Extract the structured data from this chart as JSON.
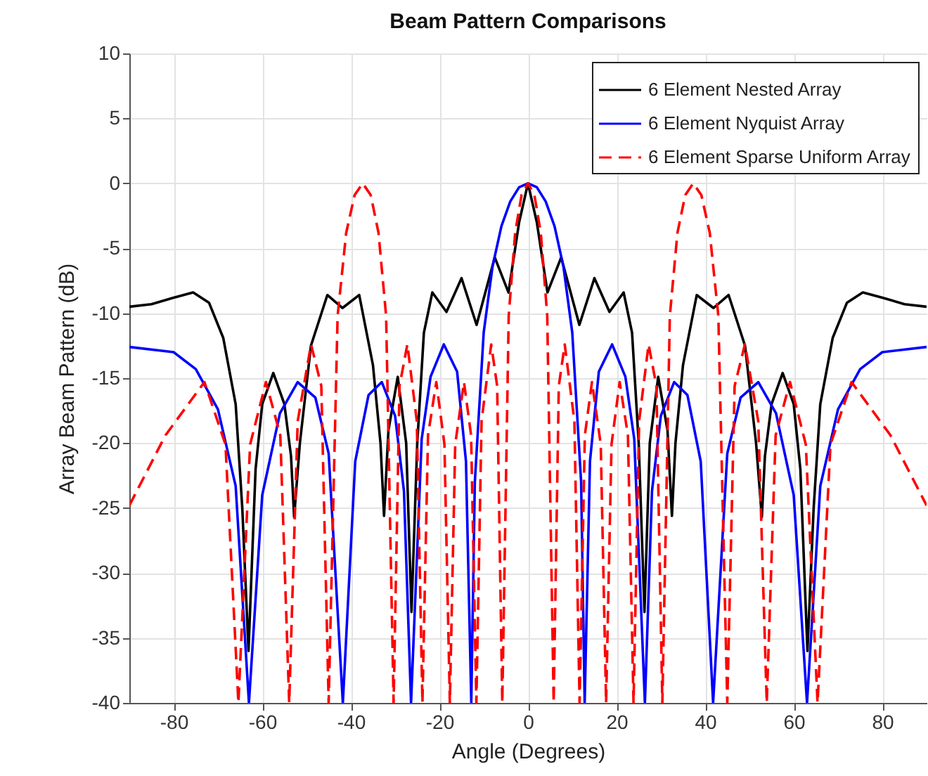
{
  "chart_data": {
    "type": "line",
    "title": "Beam Pattern Comparisons",
    "xlabel": "Angle (Degrees)",
    "ylabel": "Array Beam Pattern (dB)",
    "xlim": [
      -90,
      90
    ],
    "xticks": [
      -80,
      -60,
      -40,
      -20,
      0,
      20,
      40,
      60,
      80
    ],
    "ylim": [
      -40,
      10
    ],
    "yticks": [
      -40,
      -35,
      -30,
      -25,
      -20,
      -15,
      -10,
      -5,
      0,
      5,
      10
    ],
    "grid": true,
    "legend": "top right",
    "marker": "none",
    "series": [
      {
        "name": "6 Element Nested Array",
        "color": "#000000",
        "line_style": "solid",
        "x": [
          -90,
          -85,
          -80,
          -75.6,
          -72,
          -68.8,
          -66,
          -64.5,
          -63.1,
          -61.5,
          -60,
          -57.5,
          -55,
          -53.5,
          -52.8,
          -51.5,
          -49,
          -45.3,
          -41.9,
          -38.1,
          -35,
          -33.3,
          -32.5,
          -31.5,
          -29.4,
          -27.5,
          -26.3,
          -25,
          -23.5,
          -21.6,
          -18.4,
          -15,
          -11.6,
          -7.5,
          -4.4,
          -2,
          0,
          2,
          4.4,
          7.5,
          11.6,
          15,
          18.4,
          21.6,
          23.5,
          25,
          26.3,
          27.5,
          29.4,
          31.5,
          32.5,
          33.3,
          35,
          38.1,
          41.9,
          45.3,
          49,
          51.5,
          52.8,
          53.5,
          55,
          57.5,
          60,
          61.5,
          63.1,
          64.5,
          66,
          68.8,
          72,
          75.6,
          80,
          85,
          90
        ],
        "values": [
          -9.5,
          -9.3,
          -8.8,
          -8.4,
          -9.2,
          -11.9,
          -17,
          -25,
          -36,
          -22,
          -17,
          -14.6,
          -17,
          -21,
          -25.7,
          -20,
          -12.5,
          -8.6,
          -9.6,
          -8.6,
          -14,
          -20,
          -25.6,
          -19,
          -14.9,
          -20,
          -33,
          -20,
          -11.5,
          -8.4,
          -9.9,
          -7.3,
          -10.9,
          -5.7,
          -8.4,
          -3,
          0,
          -3,
          -8.4,
          -5.7,
          -10.9,
          -7.3,
          -9.9,
          -8.4,
          -11.5,
          -20,
          -33,
          -20,
          -14.9,
          -19,
          -25.6,
          -20,
          -14,
          -8.6,
          -9.6,
          -8.6,
          -12.5,
          -20,
          -25.7,
          -21,
          -17,
          -14.6,
          -17,
          -22,
          -36,
          -25,
          -17,
          -11.9,
          -9.2,
          -8.4,
          -8.8,
          -9.3,
          -9.5
        ]
      },
      {
        "name": "6 Element Nyquist Array",
        "color": "#0000ff",
        "line_style": "solid",
        "x": [
          -90,
          -80,
          -75,
          -70,
          -66,
          -63,
          -60,
          -56,
          -52,
          -48,
          -45,
          -41.8,
          -39,
          -36,
          -33,
          -30,
          -28,
          -26.4,
          -24,
          -22,
          -19,
          -16,
          -14,
          -12.8,
          -12,
          -10,
          -8,
          -6,
          -4,
          -2,
          0,
          2,
          4,
          6,
          8,
          10,
          12,
          12.8,
          14,
          16,
          19,
          22,
          24,
          26.4,
          28,
          30,
          33,
          36,
          39,
          41.8,
          45,
          48,
          52,
          56,
          60,
          63,
          66,
          70,
          75,
          80,
          90
        ],
        "values": [
          -12.6,
          -13,
          -14.3,
          -17.4,
          -23.3,
          -40,
          -24,
          -17.7,
          -15.3,
          -16.5,
          -20.8,
          -40,
          -21.4,
          -16.3,
          -15.3,
          -17.9,
          -23.7,
          -40,
          -19.7,
          -14.9,
          -12.4,
          -14.5,
          -21.4,
          -40,
          -23,
          -11.5,
          -6.4,
          -3.3,
          -1.4,
          -0.3,
          0,
          -0.3,
          -1.4,
          -3.3,
          -6.4,
          -11.5,
          -23,
          -40,
          -21.4,
          -14.5,
          -12.4,
          -14.9,
          -19.7,
          -40,
          -23.7,
          -17.9,
          -15.3,
          -16.3,
          -21.4,
          -40,
          -20.8,
          -16.5,
          -15.3,
          -17.7,
          -24,
          -40,
          -23.3,
          -17.4,
          -14.3,
          -13,
          -12.6
        ]
      },
      {
        "name": "6 Element Sparse Uniform Array",
        "color": "#ff0000",
        "line_style": "dashed",
        "x": [
          -90,
          -81.85,
          -73.05,
          -68.3,
          -65.38,
          -62.73,
          -59.16,
          -55.92,
          -53.91,
          -51.99,
          -48.98,
          -46.66,
          -45,
          -42.98,
          -41.04,
          -39.14,
          -37.31,
          -35.51,
          -33.75,
          -32.03,
          -30.34,
          -29,
          -27.23,
          -25.1,
          -23.83,
          -22.57,
          -20.7,
          -18.86,
          -17.64,
          -16.43,
          -14.45,
          -12.84,
          -11.65,
          -10.48,
          -8.3,
          -6.96,
          -5.8,
          -4.35,
          -2.89,
          -1.45,
          0,
          1.45,
          2.89,
          4.35,
          5.8,
          6.96,
          8.3,
          10.48,
          11.65,
          12.84,
          14.45,
          16.43,
          17.64,
          18.86,
          20.7,
          22.57,
          23.83,
          25.1,
          27.23,
          29,
          30.34,
          32.03,
          33.75,
          35.51,
          37.31,
          39.14,
          41.04,
          42.98,
          45,
          46.66,
          48.98,
          51.99,
          53.91,
          55.92,
          59.16,
          62.73,
          65.38,
          68.3,
          73.05,
          81.85,
          90
        ],
        "values": [
          -24.8,
          -19.4,
          -15.3,
          -20.1,
          -40,
          -20.1,
          -15.3,
          -19.4,
          -40,
          -18.3,
          -12.4,
          -15.6,
          -40,
          -10.2,
          -3.8,
          -0.9,
          0,
          -0.9,
          -3.8,
          -10.2,
          -40,
          -15.6,
          -12.4,
          -18.3,
          -40,
          -19.4,
          -15.3,
          -20.1,
          -40,
          -20.1,
          -15.3,
          -19.4,
          -40,
          -18.3,
          -12.4,
          -15.6,
          -40,
          -10.2,
          -3.8,
          -0.9,
          0,
          -0.9,
          -3.8,
          -10.2,
          -40,
          -15.6,
          -12.4,
          -18.3,
          -40,
          -19.4,
          -15.3,
          -20.1,
          -40,
          -20.1,
          -15.3,
          -19.4,
          -40,
          -18.3,
          -12.4,
          -15.6,
          -40,
          -10.2,
          -3.8,
          -0.9,
          0,
          -0.9,
          -3.8,
          -10.2,
          -40,
          -15.6,
          -12.4,
          -18.3,
          -40,
          -19.4,
          -15.3,
          -20.1,
          -40,
          -20.1,
          -15.3,
          -19.4,
          -24.8
        ]
      }
    ]
  }
}
